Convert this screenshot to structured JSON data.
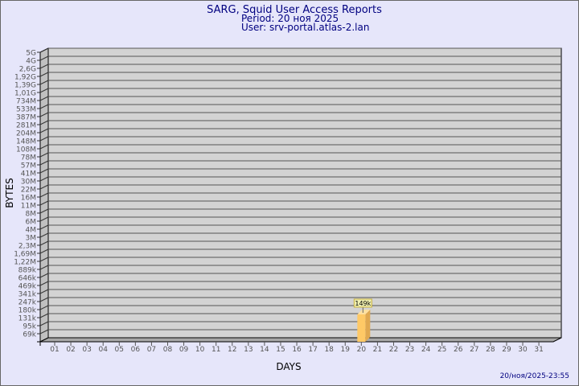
{
  "chart_data": {
    "type": "bar",
    "title": "SARG, Squid User Access Reports",
    "subtitle_period": "Period: 20 ноя 2025",
    "subtitle_user": "User: srv-portal.atlas-2.lan",
    "xlabel": "DAYS",
    "ylabel": "BYTES",
    "yscale": "log",
    "yticks": [
      "5G",
      "4G",
      "2,6G",
      "1,92G",
      "1,39G",
      "1,01G",
      "734M",
      "533M",
      "387M",
      "281M",
      "204M",
      "148M",
      "108M",
      "78M",
      "57M",
      "41M",
      "30M",
      "22M",
      "16M",
      "11M",
      "8M",
      "6M",
      "4M",
      "3M",
      "2,3M",
      "1,69M",
      "1,22M",
      "889k",
      "646k",
      "469k",
      "341k",
      "247k",
      "180k",
      "131k",
      "95k",
      "69k"
    ],
    "categories": [
      "01",
      "02",
      "03",
      "04",
      "05",
      "06",
      "07",
      "08",
      "09",
      "10",
      "11",
      "12",
      "13",
      "14",
      "15",
      "16",
      "17",
      "18",
      "19",
      "20",
      "21",
      "22",
      "23",
      "24",
      "25",
      "26",
      "27",
      "28",
      "29",
      "30",
      "31"
    ],
    "bars": [
      {
        "category": "20",
        "value": 149000,
        "label": "149k"
      }
    ],
    "grid": true,
    "colors": {
      "background": "#e6e6fa",
      "plot": "#d3d3d3",
      "bar": "#ffc966",
      "title": "#000080"
    }
  },
  "footer": {
    "timestamp": "20/ноя/2025-23:55"
  }
}
